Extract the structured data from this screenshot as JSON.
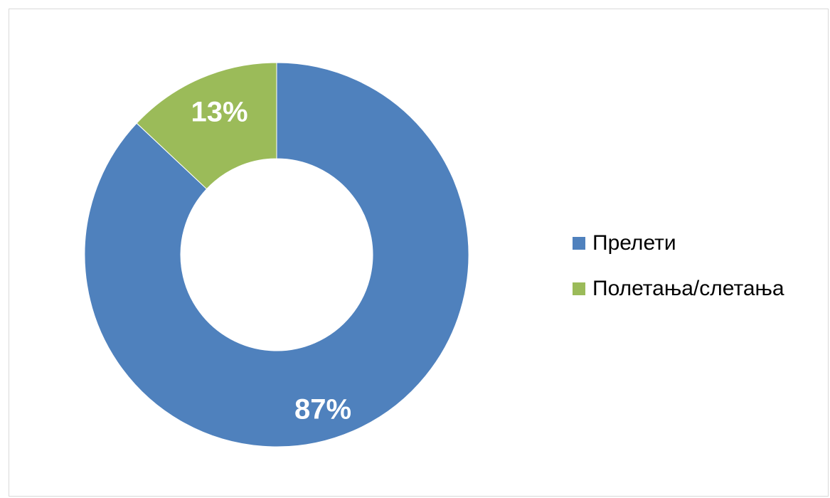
{
  "chart_data": {
    "type": "pie",
    "variant": "donut",
    "title": "",
    "categories": [
      "Прелети",
      "Полетања/слетања"
    ],
    "values": [
      87,
      13
    ],
    "unit": "%",
    "data_labels": [
      "87%",
      "13%"
    ],
    "colors": [
      "#4f81bd",
      "#9bbb59"
    ],
    "legend_position": "right"
  },
  "colors": {
    "border": "#d9d9d9",
    "background": "#ffffff",
    "label_text": "#ffffff"
  }
}
